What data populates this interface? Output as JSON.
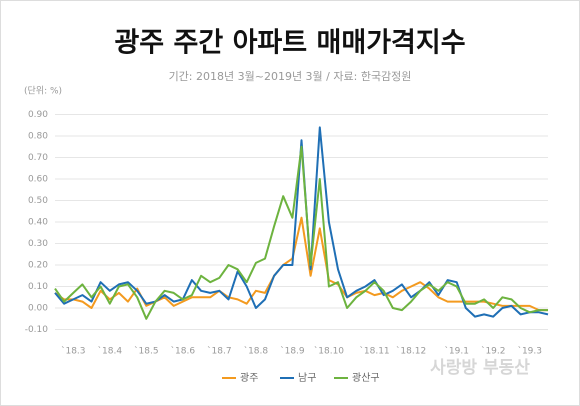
{
  "chart_data": {
    "type": "line",
    "title": "광주 주간 아파트 매매가격지수",
    "subtitle": "기간: 2018년 3월~2019년 3월 / 자료: 한국감정원",
    "unit_label": "(단위: %)",
    "watermark": "사랑방 부동산",
    "categories": [
      null,
      null,
      "`18.3",
      null,
      null,
      null,
      "`18.4",
      null,
      null,
      null,
      "`18.5",
      null,
      null,
      null,
      "`18.6",
      null,
      null,
      null,
      "`18.7",
      null,
      null,
      null,
      "`18.8",
      null,
      null,
      null,
      "`18.9",
      null,
      null,
      null,
      "`18.10",
      null,
      null,
      null,
      null,
      "`18.11",
      null,
      null,
      null,
      "`18.12",
      null,
      null,
      null,
      null,
      "`19.1",
      null,
      null,
      null,
      "`19.2",
      null,
      null,
      null,
      "`19.3",
      null,
      null
    ],
    "series": [
      {
        "name": "광주",
        "color": "#f39a1f",
        "values": [
          0.07,
          0.04,
          0.04,
          0.03,
          0.0,
          0.08,
          0.04,
          0.07,
          0.03,
          0.09,
          0.01,
          0.03,
          0.05,
          0.01,
          0.03,
          0.05,
          0.05,
          0.05,
          0.08,
          0.05,
          0.04,
          0.02,
          0.08,
          0.07,
          0.15,
          0.2,
          0.23,
          0.42,
          0.15,
          0.37,
          0.13,
          0.11,
          0.05,
          0.07,
          0.08,
          0.06,
          0.07,
          0.05,
          0.08,
          0.1,
          0.12,
          0.09,
          0.05,
          0.03,
          0.03,
          0.03,
          0.03,
          0.03,
          0.02,
          0.01,
          0.01,
          0.01,
          0.01,
          -0.01,
          -0.01
        ]
      },
      {
        "name": "남구",
        "color": "#1f6fb5",
        "values": [
          0.07,
          0.02,
          0.04,
          0.06,
          0.03,
          0.12,
          0.08,
          0.11,
          0.12,
          0.08,
          0.02,
          0.03,
          0.06,
          0.03,
          0.04,
          0.13,
          0.08,
          0.07,
          0.08,
          0.04,
          0.17,
          0.1,
          0.0,
          0.04,
          0.15,
          0.2,
          0.2,
          0.78,
          0.18,
          0.84,
          0.4,
          0.18,
          0.05,
          0.08,
          0.1,
          0.13,
          0.06,
          0.08,
          0.11,
          0.05,
          0.08,
          0.12,
          0.06,
          0.13,
          0.12,
          0.0,
          -0.04,
          -0.03,
          -0.04,
          0.0,
          0.01,
          -0.03,
          -0.02,
          -0.02,
          -0.03
        ]
      },
      {
        "name": "광산구",
        "color": "#6db33f",
        "values": [
          0.09,
          0.03,
          0.07,
          0.11,
          0.05,
          0.1,
          0.02,
          0.1,
          0.11,
          0.05,
          -0.05,
          0.03,
          0.08,
          0.07,
          0.04,
          0.06,
          0.15,
          0.12,
          0.14,
          0.2,
          0.18,
          0.12,
          0.21,
          0.23,
          0.38,
          0.52,
          0.42,
          0.75,
          0.2,
          0.6,
          0.1,
          0.12,
          0.0,
          0.05,
          0.08,
          0.12,
          0.08,
          0.0,
          -0.01,
          0.03,
          0.08,
          0.11,
          0.08,
          0.12,
          0.1,
          0.02,
          0.02,
          0.04,
          0.0,
          0.05,
          0.04,
          0.0,
          -0.02,
          -0.01,
          -0.01
        ]
      }
    ],
    "ylim": [
      -0.1,
      0.9
    ],
    "yticks": [
      {
        "value": -0.1,
        "label": "-0.10"
      },
      {
        "value": 0,
        "label": "0.00"
      },
      {
        "value": 0.1,
        "label": "0.10"
      },
      {
        "value": 0.2,
        "label": "0.20"
      },
      {
        "value": 0.3,
        "label": "0.30"
      },
      {
        "value": 0.4,
        "label": "0.40"
      },
      {
        "value": 0.5,
        "label": "0.50"
      },
      {
        "value": 0.6,
        "label": "0.60"
      },
      {
        "value": 0.7,
        "label": "0.70"
      },
      {
        "value": 0.8,
        "label": "0.80"
      },
      {
        "value": 0.9,
        "label": "0.90"
      }
    ],
    "grid": true,
    "legend": "bottom"
  }
}
